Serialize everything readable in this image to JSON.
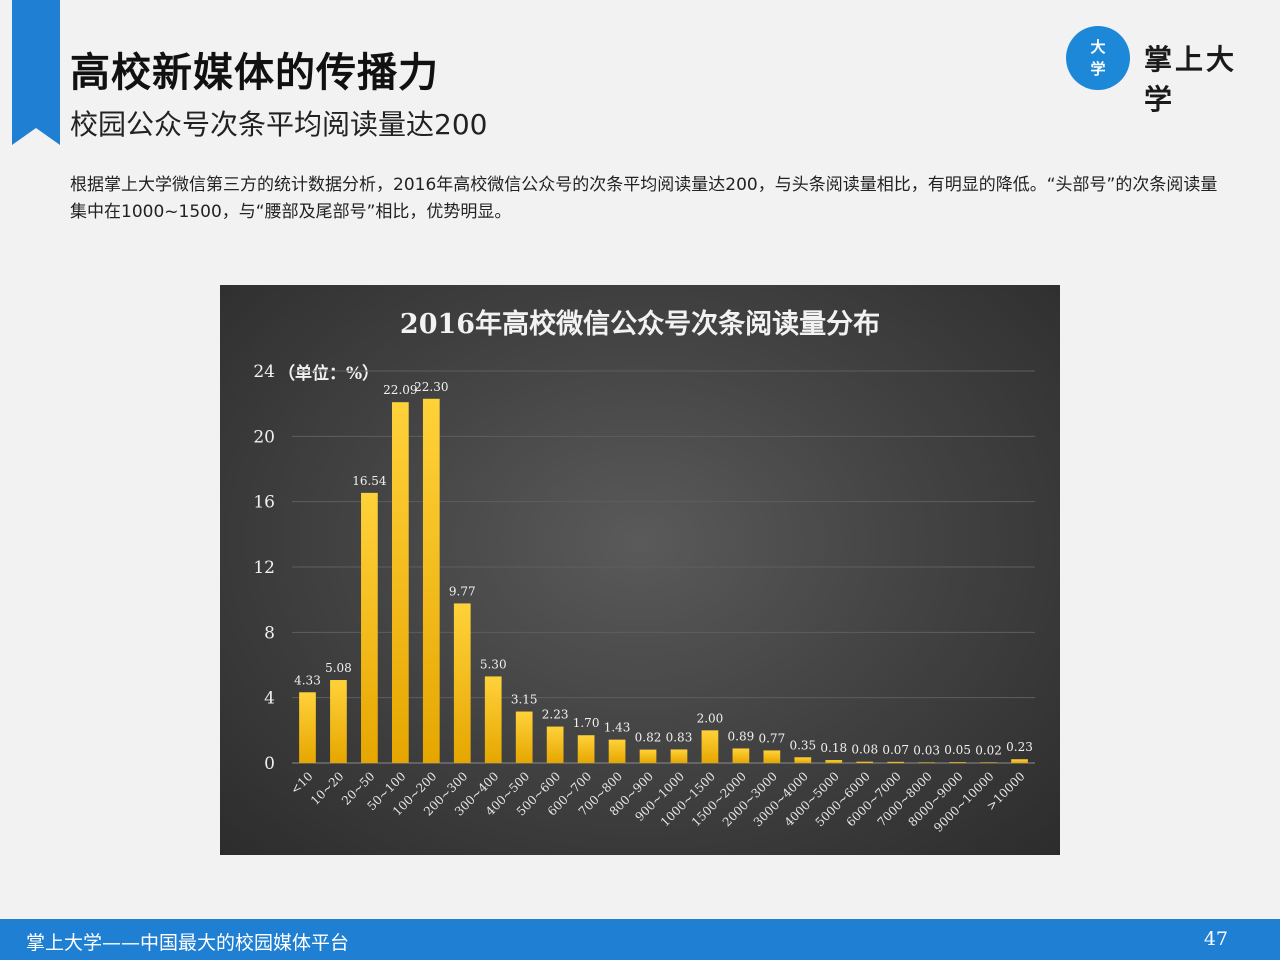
{
  "page": {
    "title": "高校新媒体的传播力",
    "subtitle": "校园公众号次条平均阅读量达200",
    "body": "根据掌上大学微信第三方的统计数据分析，2016年高校微信公众号的次条平均阅读量达200，与头条阅读量相比，有明显的降低。“头部号”的次条阅读量集中在1000~1500，与“腰部及尾部号”相比，优势明显。",
    "page_number": "47"
  },
  "logo": {
    "mark_top": "大",
    "mark_bottom": "学",
    "text": "掌上大学"
  },
  "footer": {
    "text": "掌上大学——中国最大的校园媒体平台"
  },
  "colors": {
    "accent": "#1f7fd3",
    "bar_top": "#ffd23a",
    "bar_bottom": "#e6a600",
    "panel": "#444444"
  },
  "chart_data": {
    "type": "bar",
    "title": "2016年高校微信公众号次条阅读量分布",
    "ylabel": "（单位：%）",
    "xlabel": "",
    "ylim": [
      0,
      24
    ],
    "yticks": [
      0,
      4,
      8,
      12,
      16,
      20,
      24
    ],
    "grid": true,
    "categories": [
      "<10",
      "10~20",
      "20~50",
      "50~100",
      "100~200",
      "200~300",
      "300~400",
      "400~500",
      "500~600",
      "600~700",
      "700~800",
      "800~900",
      "900~1000",
      "1000~1500",
      "1500~2000",
      "2000~3000",
      "3000~4000",
      "4000~5000",
      "5000~6000",
      "6000~7000",
      "7000~8000",
      "8000~9000",
      "9000~10000",
      ">10000"
    ],
    "values": [
      4.33,
      5.08,
      16.54,
      22.09,
      22.3,
      9.77,
      5.3,
      3.15,
      2.23,
      1.7,
      1.43,
      0.82,
      0.83,
      2.0,
      0.89,
      0.77,
      0.35,
      0.18,
      0.08,
      0.07,
      0.03,
      0.05,
      0.02,
      0.23
    ],
    "labels": [
      "4.33",
      "5.08",
      "16.54",
      "22.09",
      "22.30",
      "9.77",
      "5.30",
      "3.15",
      "2.23",
      "1.70",
      "1.43",
      "0.82",
      "0.83",
      "2.00",
      "0.89",
      "0.77",
      "0.35",
      "0.18",
      "0.08",
      "0.07",
      "0.03",
      "0.05",
      "0.02",
      "0.23"
    ]
  }
}
